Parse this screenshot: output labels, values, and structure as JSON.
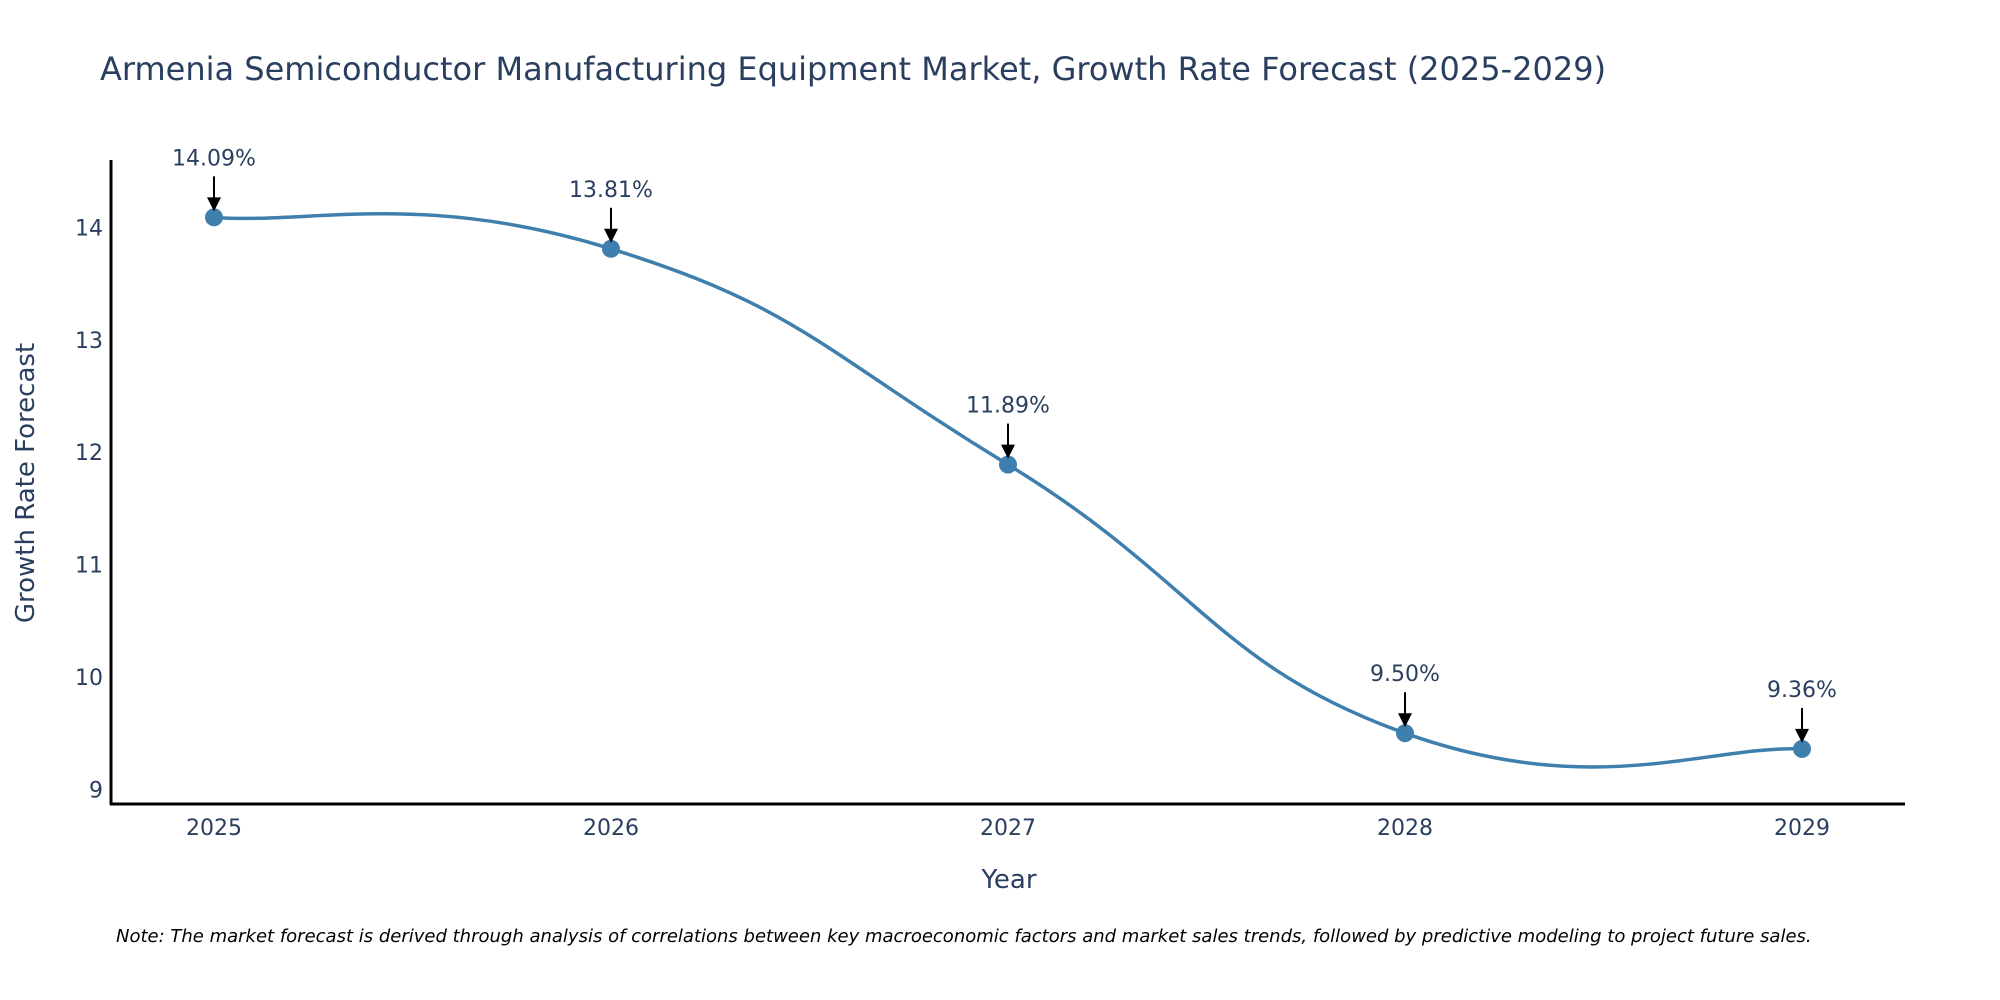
{
  "chart_data": {
    "type": "line",
    "title": "Armenia Semiconductor Manufacturing Equipment Market, Growth Rate Forecast (2025-2029)",
    "xlabel": "Year",
    "ylabel": "Growth Rate Forecast",
    "categories": [
      "2025",
      "2026",
      "2027",
      "2028",
      "2029"
    ],
    "values": [
      14.09,
      13.81,
      11.89,
      9.5,
      9.36
    ],
    "data_labels": [
      "14.09%",
      "13.81%",
      "11.89%",
      "9.50%",
      "9.36%"
    ],
    "y_ticks": [
      9,
      10,
      11,
      12,
      13,
      14
    ],
    "ylim": [
      8.87,
      14.6
    ],
    "grid": false,
    "line_shape": "spline",
    "series_color": "#3f7fad",
    "arrow_color": "#000000",
    "note": "Note: The market forecast is derived through analysis of correlations between key macroeconomic factors and market sales trends, followed by predictive modeling to project future sales."
  }
}
